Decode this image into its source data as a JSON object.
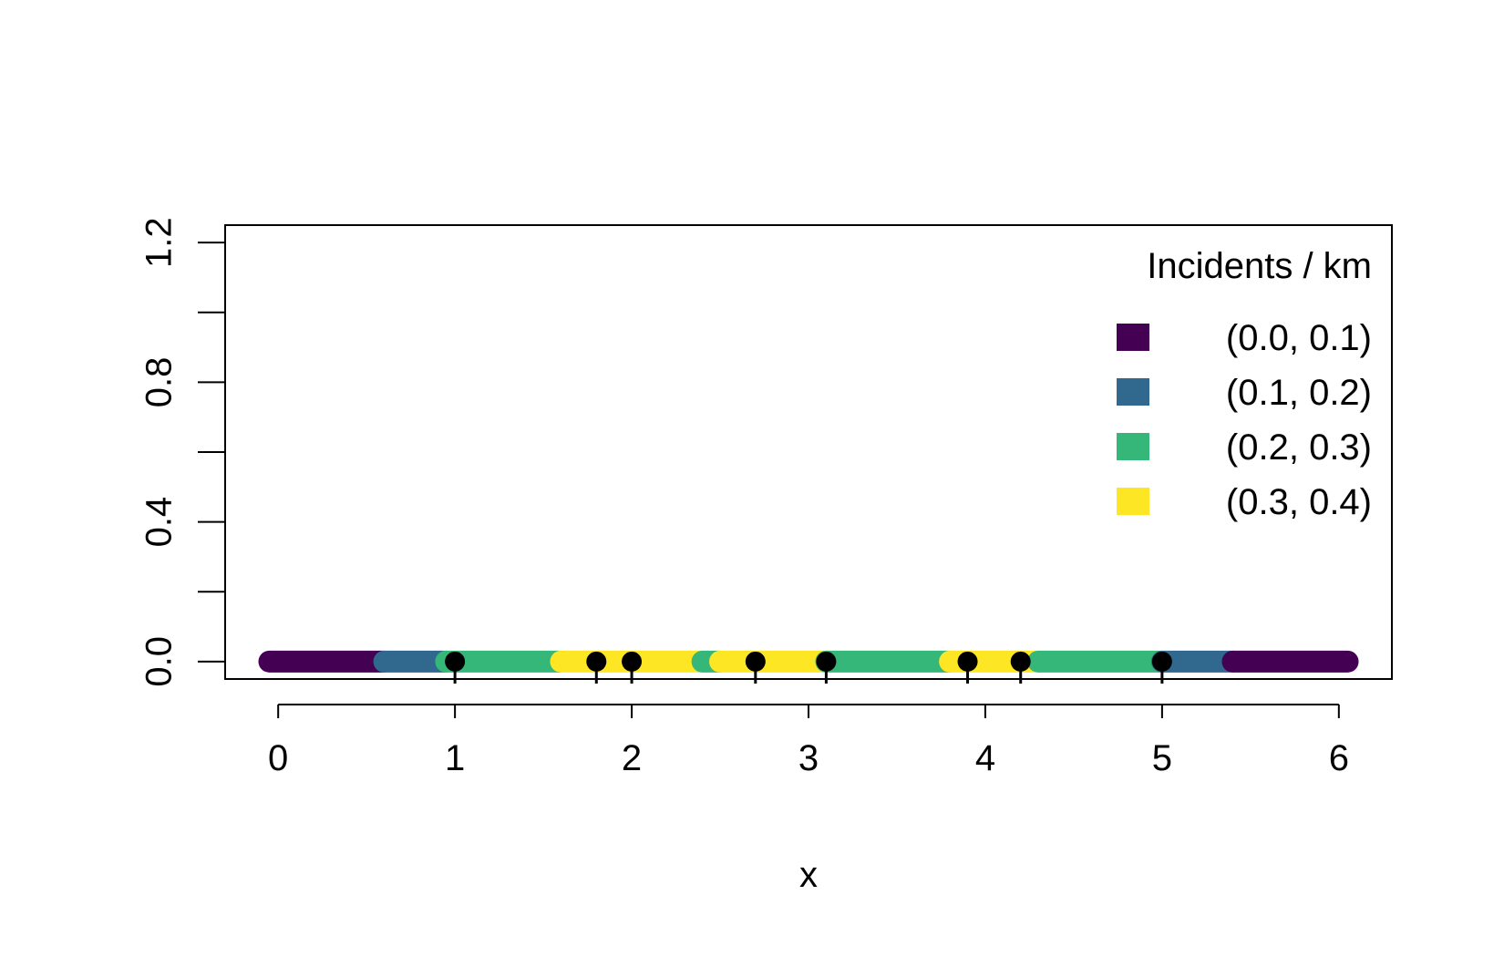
{
  "chart_data": {
    "type": "line",
    "title": "",
    "xlabel": "x",
    "ylabel": "",
    "xlim": [
      -0.3,
      6.3
    ],
    "ylim": [
      -0.05,
      1.25
    ],
    "x_ticks": [
      0,
      1,
      2,
      3,
      4,
      5,
      6
    ],
    "x_tick_labels": [
      "0",
      "1",
      "2",
      "3",
      "4",
      "5",
      "6"
    ],
    "y_ticks": [
      0,
      0.2,
      0.4,
      0.6,
      0.8,
      1.0,
      1.2
    ],
    "y_tick_labels": [
      "0.0",
      "",
      "0.4",
      "",
      "0.8",
      "",
      "1.2"
    ],
    "grid": false,
    "legend": {
      "title": "Incidents / km",
      "position": "top-right",
      "entries": [
        {
          "label": "(0.0, 0.1)",
          "color": "#440154"
        },
        {
          "label": "(0.1, 0.2)",
          "color": "#31688E"
        },
        {
          "label": "(0.2, 0.3)",
          "color": "#35B779"
        },
        {
          "label": "(0.3, 0.4)",
          "color": "#FDE725"
        }
      ]
    },
    "segments": [
      {
        "x0": -0.05,
        "x1": 0.6,
        "y": 0,
        "class": "(0.0, 0.1)",
        "color": "#440154"
      },
      {
        "x0": 0.6,
        "x1": 0.95,
        "y": 0,
        "class": "(0.1, 0.2)",
        "color": "#31688E"
      },
      {
        "x0": 0.95,
        "x1": 1.6,
        "y": 0,
        "class": "(0.2, 0.3)",
        "color": "#35B779"
      },
      {
        "x0": 1.6,
        "x1": 2.4,
        "y": 0,
        "class": "(0.3, 0.4)",
        "color": "#FDE725"
      },
      {
        "x0": 2.4,
        "x1": 2.5,
        "y": 0,
        "class": "(0.2, 0.3)",
        "color": "#35B779"
      },
      {
        "x0": 2.5,
        "x1": 3.1,
        "y": 0,
        "class": "(0.3, 0.4)",
        "color": "#FDE725"
      },
      {
        "x0": 3.1,
        "x1": 3.8,
        "y": 0,
        "class": "(0.2, 0.3)",
        "color": "#35B779"
      },
      {
        "x0": 3.8,
        "x1": 4.3,
        "y": 0,
        "class": "(0.3, 0.4)",
        "color": "#FDE725"
      },
      {
        "x0": 4.3,
        "x1": 5.0,
        "y": 0,
        "class": "(0.2, 0.3)",
        "color": "#35B779"
      },
      {
        "x0": 5.0,
        "x1": 5.4,
        "y": 0,
        "class": "(0.1, 0.2)",
        "color": "#31688E"
      },
      {
        "x0": 5.4,
        "x1": 6.05,
        "y": 0,
        "class": "(0.0, 0.1)",
        "color": "#440154"
      }
    ],
    "points": [
      {
        "x": 1.0,
        "y": 0
      },
      {
        "x": 1.8,
        "y": 0
      },
      {
        "x": 2.0,
        "y": 0
      },
      {
        "x": 2.7,
        "y": 0
      },
      {
        "x": 3.1,
        "y": 0
      },
      {
        "x": 3.9,
        "y": 0
      },
      {
        "x": 4.2,
        "y": 0
      },
      {
        "x": 5.0,
        "y": 0
      }
    ]
  }
}
